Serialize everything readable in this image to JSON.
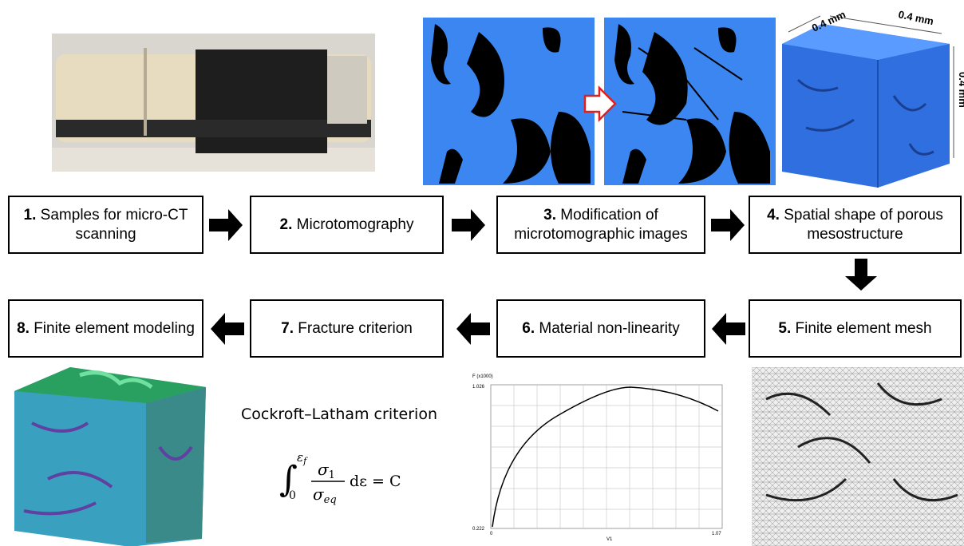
{
  "steps_top": [
    {
      "number": "1.",
      "text": "Samples for micro-CT scanning"
    },
    {
      "number": "2.",
      "text": "Microtomography"
    },
    {
      "number": "3.",
      "text": "Modification of microtomographic images"
    },
    {
      "number": "4.",
      "text": "Spatial shape of porous mesostructure"
    }
  ],
  "steps_bottom": [
    {
      "number": "8.",
      "text": "Finite element modeling"
    },
    {
      "number": "7.",
      "text": "Fracture criterion"
    },
    {
      "number": "6.",
      "text": "Material non-linearity"
    },
    {
      "number": "5.",
      "text": "Finite element mesh"
    }
  ],
  "cube_dimensions": [
    "0.4 mm",
    "0.4 mm",
    "0.4 mm"
  ],
  "criterion": {
    "name": "Cockroft–Latham criterion",
    "integral": "∫",
    "upper": "ε",
    "upper_sub": "f",
    "lower": "0",
    "numerator": "σ",
    "numerator_sub": "1",
    "denominator": "σ",
    "denominator_sub": "eq",
    "rest": "dε = C"
  },
  "mini_chart": {
    "y_label": "F (x1000)",
    "y_top": "1.026",
    "y_bottom": "0.222",
    "x_left": "0",
    "x_right": "1.07",
    "x_label": "V1"
  }
}
